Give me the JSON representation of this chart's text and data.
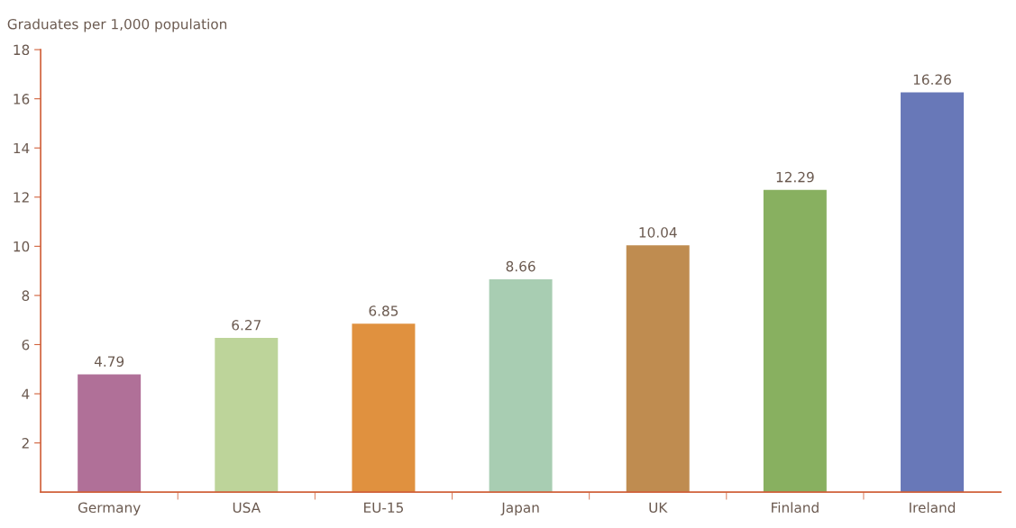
{
  "chart_data": {
    "type": "bar",
    "ylabel": "Graduates per 1,000 population",
    "categories": [
      "Germany",
      "USA",
      "EU-15",
      "Japan",
      "UK",
      "Finland",
      "Ireland"
    ],
    "values": [
      4.79,
      6.27,
      6.85,
      8.66,
      10.04,
      12.29,
      16.26
    ],
    "colors": [
      "#b07098",
      "#bdd49a",
      "#e0913f",
      "#a8cdb2",
      "#bf8c50",
      "#88b060",
      "#6878b8"
    ],
    "ylim": [
      0,
      18
    ],
    "yticks": [
      2,
      4,
      6,
      8,
      10,
      12,
      14,
      16,
      18
    ],
    "data_labels": true,
    "grid": false,
    "legend": false
  }
}
